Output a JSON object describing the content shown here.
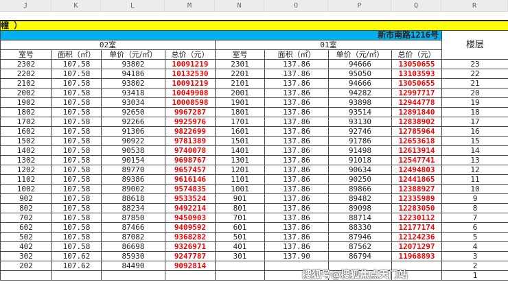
{
  "columns": [
    "J",
    "K",
    "L",
    "M",
    "N",
    "O",
    "P",
    "Q",
    "R"
  ],
  "title_fragment": "幢 ）",
  "building": "新市南路1216号",
  "unit_02": "02室",
  "unit_01": "01室",
  "floor_header": "楼层",
  "headers": [
    "室号",
    "面积（㎡）",
    "单价（元/㎡）",
    "总价（元）"
  ],
  "rows": [
    {
      "r2": "2302",
      "a2": "107.58",
      "p2": "93802",
      "t2": "10091219",
      "r1": "2301",
      "a1": "137.86",
      "p1": "94666",
      "t1": "13050655",
      "f": "23"
    },
    {
      "r2": "2202",
      "a2": "107.58",
      "p2": "94186",
      "t2": "10132530",
      "r1": "2201",
      "a1": "137.86",
      "p1": "95050",
      "t1": "13103593",
      "f": "22"
    },
    {
      "r2": "2102",
      "a2": "107.58",
      "p2": "93802",
      "t2": "10091219",
      "r1": "2101",
      "a1": "137.86",
      "p1": "94666",
      "t1": "13050655",
      "f": "21"
    },
    {
      "r2": "2002",
      "a2": "107.58",
      "p2": "93418",
      "t2": "10049908",
      "r1": "2001",
      "a1": "137.86",
      "p1": "94282",
      "t1": "12997717",
      "f": "20"
    },
    {
      "r2": "1902",
      "a2": "107.58",
      "p2": "93034",
      "t2": "10008598",
      "r1": "1901",
      "a1": "137.86",
      "p1": "93898",
      "t1": "12944778",
      "f": "19"
    },
    {
      "r2": "1802",
      "a2": "107.58",
      "p2": "92650",
      "t2": "9967287",
      "r1": "1801",
      "a1": "137.86",
      "p1": "93514",
      "t1": "12891840",
      "f": "18"
    },
    {
      "r2": "1702",
      "a2": "107.58",
      "p2": "92266",
      "t2": "9925976",
      "r1": "1701",
      "a1": "137.86",
      "p1": "93130",
      "t1": "12838902",
      "f": "17"
    },
    {
      "r2": "1602",
      "a2": "107.58",
      "p2": "91306",
      "t2": "9822699",
      "r1": "1601",
      "a1": "137.86",
      "p1": "92746",
      "t1": "12785964",
      "f": "16"
    },
    {
      "r2": "1502",
      "a2": "107.58",
      "p2": "90922",
      "t2": "9781389",
      "r1": "1501",
      "a1": "137.86",
      "p1": "91786",
      "t1": "12653618",
      "f": "15"
    },
    {
      "r2": "1402",
      "a2": "107.58",
      "p2": "90538",
      "t2": "9740078",
      "r1": "1401",
      "a1": "137.86",
      "p1": "91498",
      "t1": "12613914",
      "f": "14"
    },
    {
      "r2": "1302",
      "a2": "107.58",
      "p2": "90154",
      "t2": "9698767",
      "r1": "1301",
      "a1": "137.86",
      "p1": "91018",
      "t1": "12547741",
      "f": "13"
    },
    {
      "r2": "1202",
      "a2": "107.58",
      "p2": "89770",
      "t2": "9657457",
      "r1": "1201",
      "a1": "137.86",
      "p1": "90634",
      "t1": "12494803",
      "f": "12"
    },
    {
      "r2": "1102",
      "a2": "107.58",
      "p2": "89386",
      "t2": "9616146",
      "r1": "1101",
      "a1": "137.86",
      "p1": "90250",
      "t1": "12441865",
      "f": "11"
    },
    {
      "r2": "1002",
      "a2": "107.58",
      "p2": "89002",
      "t2": "9574835",
      "r1": "1001",
      "a1": "137.86",
      "p1": "89866",
      "t1": "12388927",
      "f": "10"
    },
    {
      "r2": "902",
      "a2": "107.58",
      "p2": "88618",
      "t2": "9533524",
      "r1": "901",
      "a1": "137.86",
      "p1": "89482",
      "t1": "12335989",
      "f": "9"
    },
    {
      "r2": "802",
      "a2": "107.58",
      "p2": "88234",
      "t2": "9492214",
      "r1": "801",
      "a1": "137.86",
      "p1": "89098",
      "t1": "12283050",
      "f": "8"
    },
    {
      "r2": "702",
      "a2": "107.58",
      "p2": "87850",
      "t2": "9450903",
      "r1": "701",
      "a1": "137.86",
      "p1": "88714",
      "t1": "12230112",
      "f": "7"
    },
    {
      "r2": "602",
      "a2": "107.58",
      "p2": "87466",
      "t2": "9409592",
      "r1": "601",
      "a1": "137.86",
      "p1": "88330",
      "t1": "12177174",
      "f": "6"
    },
    {
      "r2": "502",
      "a2": "107.58",
      "p2": "87082",
      "t2": "9368282",
      "r1": "501",
      "a1": "137.86",
      "p1": "87946",
      "t1": "12124236",
      "f": "5"
    },
    {
      "r2": "402",
      "a2": "107.58",
      "p2": "86698",
      "t2": "9326971",
      "r1": "401",
      "a1": "137.86",
      "p1": "87562",
      "t1": "12071297",
      "f": "4"
    },
    {
      "r2": "302",
      "a2": "107.62",
      "p2": "85930",
      "t2": "9247787",
      "r1": "301",
      "a1": "137.90",
      "p1": "86794",
      "t1": "11968893",
      "f": "3"
    },
    {
      "r2": "202",
      "a2": "107.62",
      "p2": "84490",
      "t2": "9092814",
      "r1": "",
      "a1": "",
      "p1": "",
      "t1": "",
      "f": "2"
    },
    {
      "r2": "",
      "a2": "",
      "p2": "",
      "t2": "",
      "r1": "",
      "a1": "",
      "p1": "",
      "t1": "",
      "f": "1"
    }
  ],
  "watermark": "搜狐号@搜狐焦点天门站"
}
